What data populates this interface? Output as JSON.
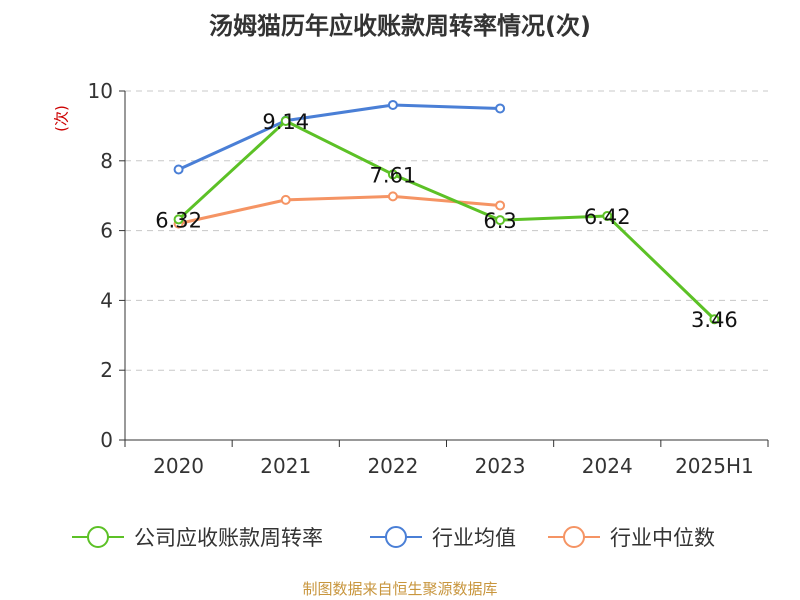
{
  "page": {
    "title": "汤姆猫历年应收账款周转率情况(次)",
    "source": "制图数据来自恒生聚源数据库"
  },
  "chart_data": {
    "type": "line",
    "title": "汤姆猫历年应收账款周转率情况(次)",
    "ylabel": "(次)",
    "xlabel": "",
    "categories": [
      "2020",
      "2021",
      "2022",
      "2023",
      "2024",
      "2025H1"
    ],
    "ylim": [
      0,
      10
    ],
    "yticks": [
      0,
      2,
      4,
      6,
      8,
      10
    ],
    "grid": true,
    "legend_position": "bottom",
    "series": [
      {
        "name": "公司应收账款周转率",
        "color": "#5cc126",
        "values": [
          6.32,
          9.14,
          7.61,
          6.3,
          6.42,
          3.46
        ],
        "labels": [
          "6.32",
          "9.14",
          "7.61",
          "6.3",
          "6.42",
          "3.46"
        ],
        "show_labels": true
      },
      {
        "name": "行业均值",
        "color": "#4a7fd6",
        "values": [
          7.75,
          9.15,
          9.6,
          9.5,
          null,
          null
        ],
        "show_labels": false
      },
      {
        "name": "行业中位数",
        "color": "#f59464",
        "values": [
          6.2,
          6.88,
          6.98,
          6.72,
          null,
          null
        ],
        "show_labels": false
      }
    ]
  }
}
